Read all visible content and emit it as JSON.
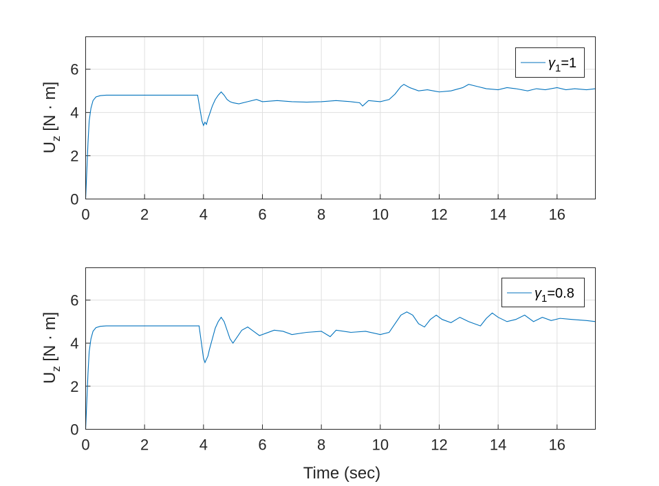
{
  "chart_data": [
    {
      "type": "line",
      "ylabel": "U_z [N · m]",
      "ylabel_main": "U",
      "ylabel_sub": "z",
      "ylabel_units": " [N · m]",
      "xlabel": "",
      "xlim": [
        0,
        17.3
      ],
      "ylim": [
        0,
        7.5
      ],
      "xticks": [
        0,
        2,
        4,
        6,
        8,
        10,
        12,
        14,
        16
      ],
      "yticks": [
        0,
        2,
        4,
        6
      ],
      "grid": true,
      "legend_position": "top-right",
      "color": "#0072BD",
      "series": [
        {
          "name": "γ1=1",
          "legend_symbol": "γ",
          "legend_sub": "1",
          "legend_value": "=1",
          "x": [
            0,
            0.04,
            0.08,
            0.12,
            0.18,
            0.25,
            0.35,
            0.5,
            0.7,
            1.0,
            2.0,
            3.0,
            3.8,
            3.85,
            3.9,
            3.95,
            4.0,
            4.05,
            4.1,
            4.15,
            4.2,
            4.3,
            4.4,
            4.5,
            4.6,
            4.7,
            4.8,
            4.9,
            5.0,
            5.2,
            5.5,
            5.8,
            6.0,
            6.5,
            7.0,
            7.5,
            8.0,
            8.5,
            9.0,
            9.3,
            9.4,
            9.6,
            10.0,
            10.3,
            10.5,
            10.7,
            10.8,
            11.0,
            11.3,
            11.6,
            12.0,
            12.4,
            12.8,
            13.0,
            13.3,
            13.6,
            14.0,
            14.3,
            14.6,
            15.0,
            15.3,
            15.6,
            16.0,
            16.3,
            16.6,
            17.0,
            17.3
          ],
          "values": [
            0,
            1.3,
            2.6,
            3.6,
            4.2,
            4.55,
            4.72,
            4.78,
            4.8,
            4.8,
            4.8,
            4.8,
            4.8,
            4.4,
            4.0,
            3.6,
            3.4,
            3.55,
            3.45,
            3.7,
            3.9,
            4.3,
            4.6,
            4.8,
            4.95,
            4.8,
            4.6,
            4.5,
            4.45,
            4.4,
            4.5,
            4.6,
            4.5,
            4.55,
            4.5,
            4.48,
            4.5,
            4.55,
            4.5,
            4.45,
            4.3,
            4.55,
            4.5,
            4.6,
            4.85,
            5.2,
            5.3,
            5.15,
            5.0,
            5.05,
            4.95,
            5.0,
            5.15,
            5.3,
            5.2,
            5.1,
            5.05,
            5.15,
            5.1,
            5.0,
            5.1,
            5.05,
            5.15,
            5.05,
            5.1,
            5.05,
            5.1
          ]
        }
      ]
    },
    {
      "type": "line",
      "ylabel": "U_z [N · m]",
      "ylabel_main": "U",
      "ylabel_sub": "z",
      "ylabel_units": " [N · m]",
      "xlabel": "Time (sec)",
      "xlim": [
        0,
        17.3
      ],
      "ylim": [
        0,
        7.5
      ],
      "xticks": [
        0,
        2,
        4,
        6,
        8,
        10,
        12,
        14,
        16
      ],
      "yticks": [
        0,
        2,
        4,
        6
      ],
      "grid": true,
      "legend_position": "top-right",
      "color": "#0072BD",
      "series": [
        {
          "name": "γ1=0.8",
          "legend_symbol": "γ",
          "legend_sub": "1",
          "legend_value": "=0.8",
          "x": [
            0,
            0.04,
            0.08,
            0.12,
            0.18,
            0.25,
            0.35,
            0.5,
            0.7,
            1.0,
            2.0,
            3.0,
            3.85,
            3.9,
            3.95,
            4.0,
            4.05,
            4.1,
            4.15,
            4.2,
            4.3,
            4.4,
            4.5,
            4.6,
            4.7,
            4.8,
            4.9,
            5.0,
            5.1,
            5.3,
            5.5,
            5.7,
            5.9,
            6.1,
            6.4,
            6.7,
            7.0,
            7.5,
            8.0,
            8.3,
            8.5,
            9.0,
            9.5,
            10.0,
            10.3,
            10.5,
            10.7,
            10.9,
            11.1,
            11.3,
            11.5,
            11.7,
            11.9,
            12.1,
            12.4,
            12.7,
            13.0,
            13.2,
            13.4,
            13.6,
            13.8,
            14.0,
            14.3,
            14.6,
            14.9,
            15.2,
            15.5,
            15.8,
            16.1,
            16.5,
            17.0,
            17.3
          ],
          "values": [
            0,
            1.3,
            2.6,
            3.6,
            4.2,
            4.55,
            4.72,
            4.78,
            4.8,
            4.8,
            4.8,
            4.8,
            4.8,
            4.3,
            3.8,
            3.3,
            3.1,
            3.25,
            3.4,
            3.7,
            4.2,
            4.7,
            5.0,
            5.2,
            5.0,
            4.6,
            4.2,
            4.0,
            4.2,
            4.6,
            4.75,
            4.55,
            4.35,
            4.45,
            4.6,
            4.55,
            4.4,
            4.5,
            4.55,
            4.3,
            4.6,
            4.5,
            4.55,
            4.4,
            4.5,
            4.9,
            5.3,
            5.45,
            5.3,
            4.9,
            4.75,
            5.1,
            5.3,
            5.1,
            4.95,
            5.2,
            5.0,
            4.9,
            4.8,
            5.15,
            5.4,
            5.2,
            5.0,
            5.1,
            5.3,
            5.0,
            5.2,
            5.05,
            5.15,
            5.1,
            5.05,
            5.0
          ]
        }
      ]
    }
  ]
}
